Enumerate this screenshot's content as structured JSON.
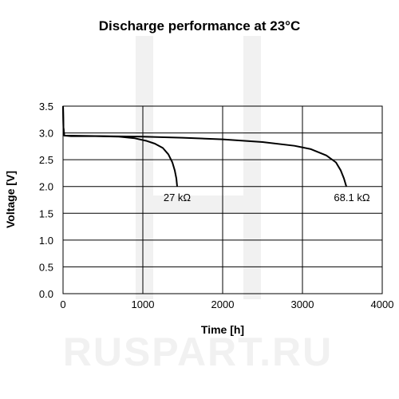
{
  "chart_data": {
    "type": "line",
    "title": "Discharge performance at 23°C",
    "xlabel": "Time [h]",
    "ylabel": "Voltage [V]",
    "xlim": [
      0,
      4000
    ],
    "ylim": [
      0,
      3.5
    ],
    "xticks": [
      0,
      1000,
      2000,
      3000,
      4000
    ],
    "yticks": [
      0.0,
      0.5,
      1.0,
      1.5,
      2.0,
      2.5,
      3.0,
      3.5
    ],
    "ytick_labels": [
      "0.0",
      "0.5",
      "1.0",
      "1.5",
      "2.0",
      "2.5",
      "3.0",
      "3.5"
    ],
    "grid": true,
    "series": [
      {
        "name": "27 kΩ",
        "points": [
          [
            0,
            3.5
          ],
          [
            5,
            3.1
          ],
          [
            15,
            2.95
          ],
          [
            100,
            2.94
          ],
          [
            400,
            2.94
          ],
          [
            700,
            2.93
          ],
          [
            900,
            2.9
          ],
          [
            1050,
            2.85
          ],
          [
            1150,
            2.8
          ],
          [
            1250,
            2.72
          ],
          [
            1320,
            2.6
          ],
          [
            1370,
            2.45
          ],
          [
            1400,
            2.3
          ],
          [
            1420,
            2.15
          ],
          [
            1430,
            2.0
          ]
        ]
      },
      {
        "name": "68.1 kΩ",
        "points": [
          [
            0,
            3.5
          ],
          [
            5,
            3.1
          ],
          [
            15,
            2.95
          ],
          [
            500,
            2.94
          ],
          [
            1000,
            2.93
          ],
          [
            1500,
            2.91
          ],
          [
            2000,
            2.88
          ],
          [
            2500,
            2.83
          ],
          [
            2900,
            2.76
          ],
          [
            3100,
            2.7
          ],
          [
            3300,
            2.58
          ],
          [
            3420,
            2.45
          ],
          [
            3480,
            2.3
          ],
          [
            3520,
            2.15
          ],
          [
            3550,
            2.0
          ]
        ]
      }
    ],
    "annotations": [
      {
        "text": "27 kΩ",
        "x": 1430,
        "y": 1.8
      },
      {
        "text": "68.1 kΩ",
        "x": 3620,
        "y": 1.8
      }
    ]
  },
  "watermark": {
    "text": "RUSPART.RU",
    "color": "#f1f1f1"
  }
}
